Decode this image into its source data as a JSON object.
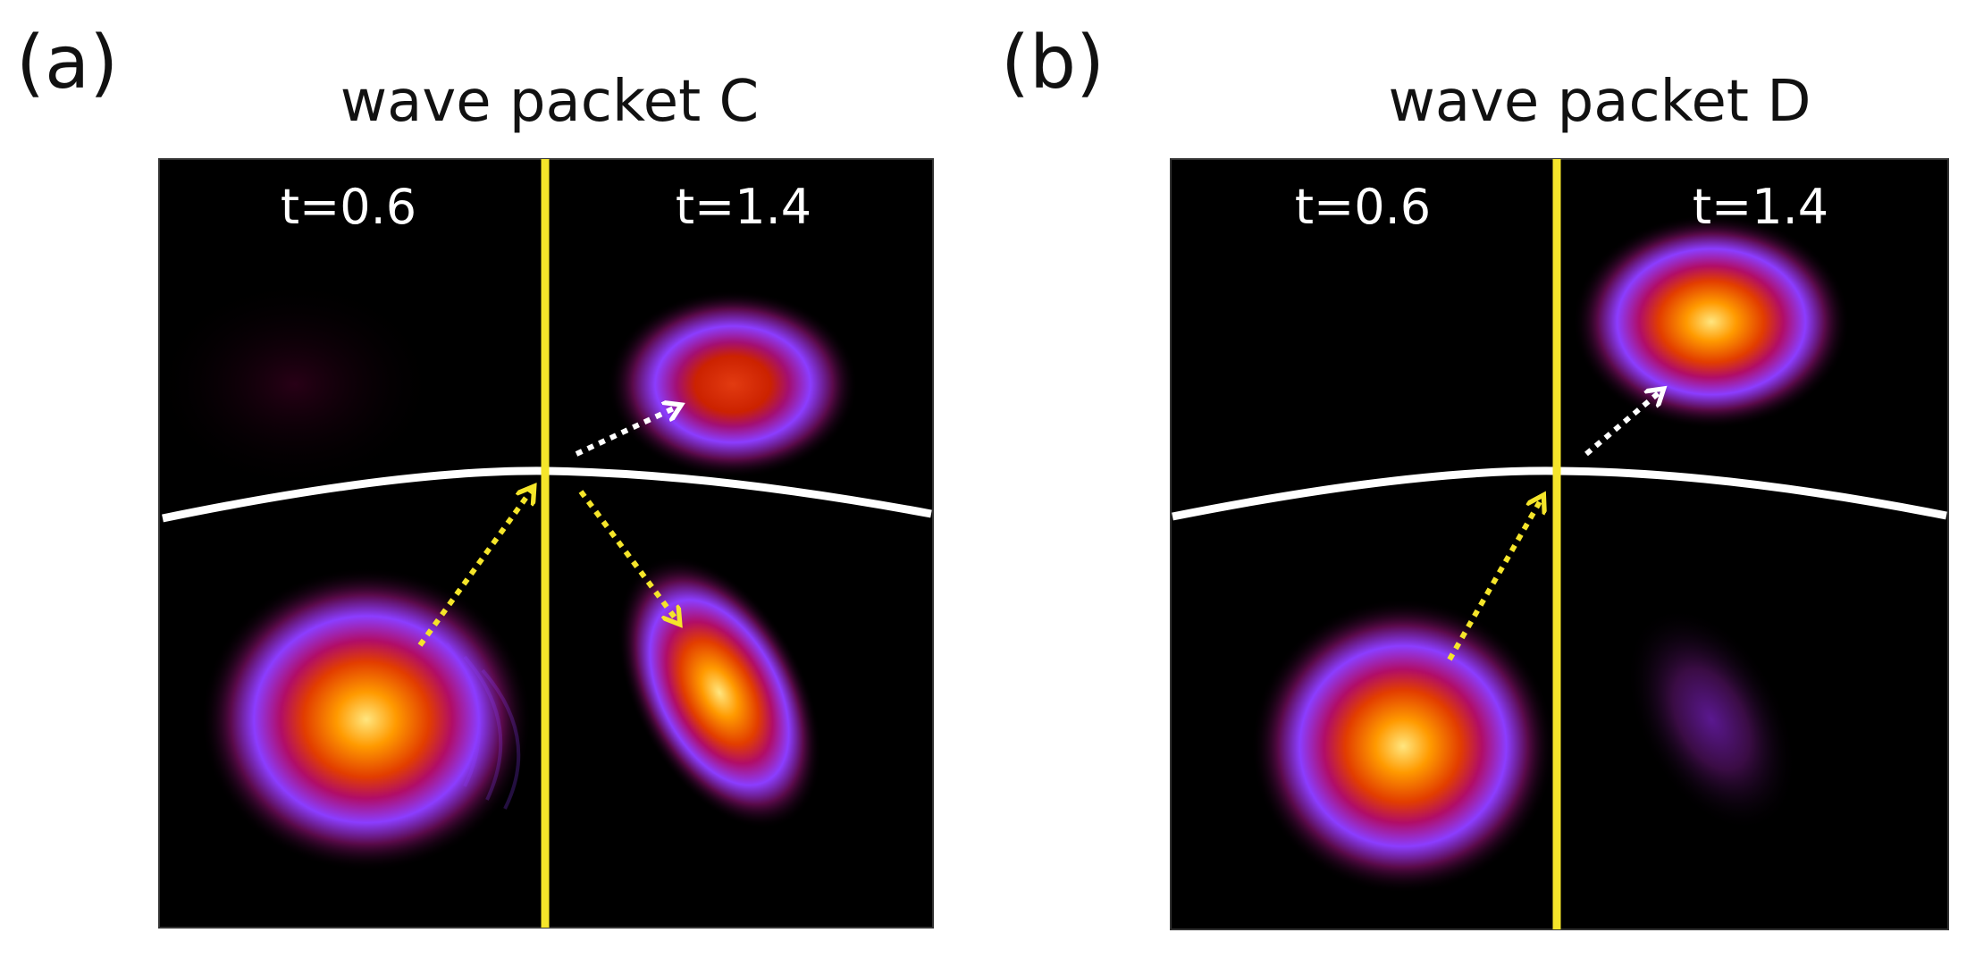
{
  "panels": [
    {
      "label": "(a)",
      "title": "wave packet C",
      "left_time": "t=0.6",
      "right_time": "t=1.4"
    },
    {
      "label": "(b)",
      "title": "wave packet D",
      "left_time": "t=0.6",
      "right_time": "t=1.4"
    }
  ],
  "colors": {
    "background": "#000000",
    "divider": "#f5e52a",
    "interface_curve": "#ffffff",
    "incident_arrow": "#f5e52a",
    "transmitted_arrow": "#ffffff",
    "colormap": [
      "#000000",
      "#5a0a4a",
      "#8f3cff",
      "#cc2200",
      "#ff7a00",
      "#ffe680"
    ]
  }
}
